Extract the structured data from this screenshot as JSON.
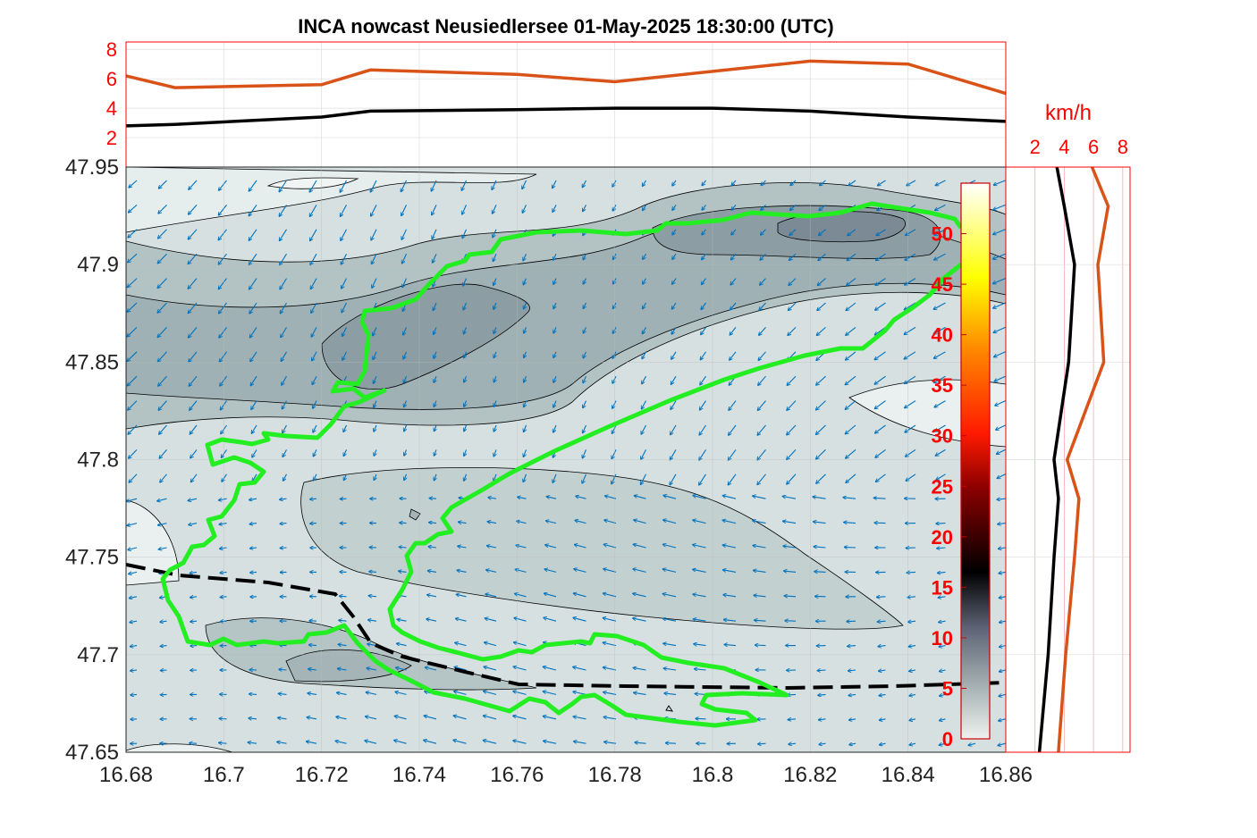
{
  "title": "INCA nowcast Neusiedlersee 01-May-2025 18:30:00 (UTC)",
  "colors": {
    "average_wind": "#000000",
    "gust_wind": "#d95319",
    "lake_outline": "#22ee22",
    "border": "#000000",
    "wind_arrows": "#0072bd",
    "aux_axis_text": "#ff0000"
  },
  "chart_data": [
    {
      "type": "area",
      "name": "map",
      "description_fields": [
        "contour",
        "quiver",
        "outline"
      ],
      "xlim": [
        16.68,
        16.86
      ],
      "ylim": [
        47.65,
        47.95
      ],
      "xticks": [
        "16.68",
        "16.7",
        "16.72",
        "16.74",
        "16.76",
        "16.78",
        "16.8",
        "16.82",
        "16.84",
        "16.86"
      ],
      "yticks": [
        "47.65",
        "47.7",
        "47.75",
        "47.8",
        "47.85",
        "47.9",
        "47.95"
      ],
      "grid": true,
      "wind_vectors": "mostly westward to south-westward arrows across the domain"
    },
    {
      "type": "line",
      "name": "top-profile",
      "xlim": [
        16.68,
        16.86
      ],
      "ylim": [
        0,
        8.5
      ],
      "yticks": [
        "2",
        "4",
        "6",
        "8"
      ],
      "grid": true,
      "x": [
        16.68,
        16.69,
        16.72,
        16.73,
        16.76,
        16.78,
        16.8,
        16.82,
        16.84,
        16.86
      ],
      "series": [
        {
          "color_key": "average_wind",
          "values": [
            2.8,
            2.9,
            3.4,
            3.8,
            3.9,
            4.0,
            4.0,
            3.8,
            3.4,
            3.1
          ]
        },
        {
          "color_key": "gust_wind",
          "values": [
            6.2,
            5.4,
            5.6,
            6.6,
            6.3,
            5.8,
            6.5,
            7.2,
            7.0,
            5.0
          ]
        }
      ]
    },
    {
      "type": "line",
      "name": "right-profile",
      "orientation": "vertical",
      "unit_label": "km/h",
      "xlim": [
        0,
        8.5
      ],
      "xticks": [
        "2",
        "4",
        "6",
        "8"
      ],
      "ylim": [
        47.65,
        47.95
      ],
      "grid": true,
      "y": [
        47.65,
        47.7,
        47.75,
        47.78,
        47.8,
        47.85,
        47.9,
        47.93,
        47.95
      ],
      "series": [
        {
          "color_key": "average_wind",
          "values": [
            2.3,
            2.9,
            3.3,
            3.6,
            3.3,
            4.3,
            4.7,
            4.0,
            3.5
          ]
        },
        {
          "color_key": "gust_wind",
          "values": [
            3.6,
            4.1,
            4.7,
            5.0,
            4.2,
            6.7,
            6.3,
            7.0,
            5.9
          ]
        }
      ]
    }
  ],
  "colorbar": {
    "ticks": [
      "0",
      "5",
      "10",
      "15",
      "20",
      "25",
      "30",
      "35",
      "40",
      "45",
      "50"
    ],
    "range": [
      0,
      55
    ]
  }
}
